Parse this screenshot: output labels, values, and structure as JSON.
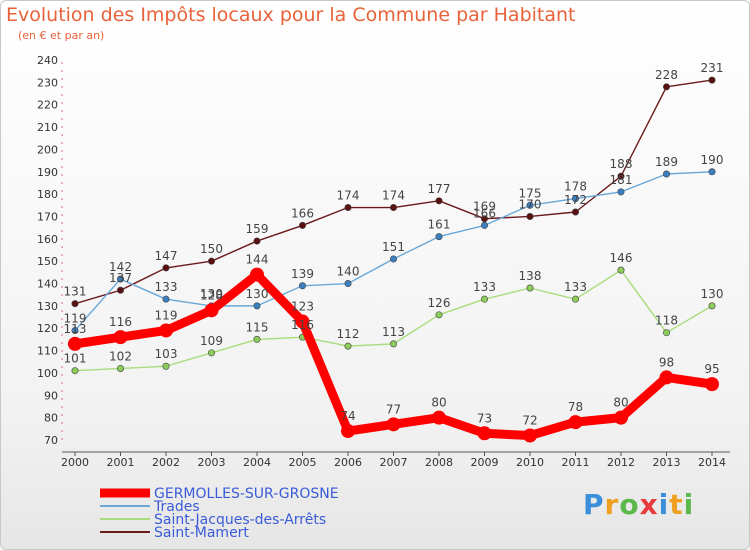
{
  "header": {
    "title": "Evolution des Impôts locaux pour la Commune par Habitant",
    "subtitle": "(en € et par an)"
  },
  "logo": {
    "text": "Proxiti"
  },
  "colors": {
    "title": "#e8623a",
    "germolles": "#ff0000",
    "trades": "#6aa8d8",
    "saint_jacques": "#a8dc7e",
    "saint_mamert": "#6b1a1a"
  },
  "chart_data": {
    "type": "line",
    "title": "Evolution des Impôts locaux pour la Commune par Habitant",
    "subtitle": "(en € et par an)",
    "x": [
      "2000",
      "2001",
      "2002",
      "2003",
      "2004",
      "2005",
      "2006",
      "2007",
      "2008",
      "2009",
      "2010",
      "2011",
      "2012",
      "2013",
      "2014"
    ],
    "ylim": [
      70,
      240
    ],
    "yticks": [
      70,
      80,
      90,
      100,
      110,
      120,
      130,
      140,
      150,
      160,
      170,
      180,
      190,
      200,
      210,
      220,
      230,
      240
    ],
    "grid": false,
    "legend_position": "bottom-left",
    "series": [
      {
        "name": "GERMOLLES-SUR-GROSNE",
        "color": "#ff0000",
        "line_color": "#ff0000",
        "marker_color": "#ff0000",
        "width": 9,
        "values": [
          113,
          116,
          119,
          128,
          144,
          123,
          74,
          77,
          80,
          73,
          72,
          78,
          80,
          98,
          95
        ],
        "labels": [
          "113",
          "116",
          "119",
          "128",
          "144",
          "123",
          "74",
          "77",
          "80",
          "73",
          "72",
          "78",
          "80",
          "98",
          "95"
        ]
      },
      {
        "name": "Trades",
        "color": "#6aa8d8",
        "line_color": "#6aa8d8",
        "marker_color": "#3a7fc0",
        "width": 1.4,
        "values": [
          119,
          142,
          133,
          130,
          130,
          139,
          140,
          151,
          161,
          166,
          175,
          178,
          181,
          189,
          190
        ],
        "labels": [
          "119",
          "142",
          "133",
          "130",
          "130",
          "139",
          "140",
          "151",
          "161",
          "166",
          "175",
          "178",
          "181",
          "189",
          "190"
        ]
      },
      {
        "name": "Saint-Jacques-des-Arrêts",
        "color": "#a8dc7e",
        "line_color": "#a8dc7e",
        "marker_color": "#8ccc5a",
        "width": 1.4,
        "values": [
          101,
          102,
          103,
          109,
          115,
          116,
          112,
          113,
          126,
          133,
          138,
          133,
          146,
          118,
          130
        ],
        "labels": [
          "101",
          "102",
          "103",
          "109",
          "115",
          "116",
          "112",
          "113",
          "126",
          "133",
          "138",
          "133",
          "146",
          "118",
          "130"
        ]
      },
      {
        "name": "Saint-Mamert",
        "color": "#6b1a1a",
        "line_color": "#6b1a1a",
        "marker_color": "#5a1010",
        "width": 1.4,
        "values": [
          131,
          137,
          147,
          150,
          159,
          166,
          174,
          174,
          177,
          169,
          170,
          172,
          188,
          228,
          231
        ],
        "labels": [
          "131",
          "137",
          "147",
          "150",
          "159",
          "166",
          "174",
          "174",
          "177",
          "169",
          "170",
          "172",
          "188",
          "228",
          "231"
        ]
      }
    ]
  }
}
